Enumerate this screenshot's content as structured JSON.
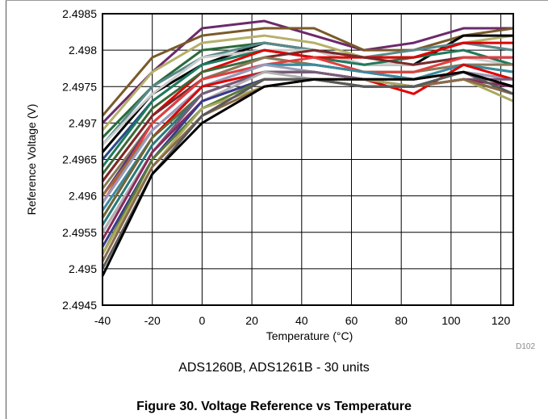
{
  "chart_data": {
    "type": "line",
    "xlabel": "Temperature (°C)",
    "ylabel": "Reference Voltage (V)",
    "x": [
      -40,
      -20,
      0,
      25,
      45,
      65,
      85,
      105,
      125
    ],
    "xlim": [
      -40,
      125
    ],
    "ylim": [
      2.4945,
      2.4985
    ],
    "xticks": [
      "-40",
      "-20",
      "0",
      "20",
      "40",
      "60",
      "80",
      "100",
      "120"
    ],
    "xtick_values": [
      -40,
      -20,
      0,
      20,
      40,
      60,
      80,
      100,
      120
    ],
    "yticks": [
      "2.4945",
      "2.495",
      "2.4955",
      "2.496",
      "2.4965",
      "2.497",
      "2.4975",
      "2.498",
      "2.4985"
    ],
    "ytick_values": [
      2.4945,
      2.495,
      2.4955,
      2.496,
      2.4965,
      2.497,
      2.4975,
      2.498,
      2.4985
    ],
    "grid": true,
    "figure_code": "D102",
    "series": [
      {
        "color": "#6b2a6b",
        "values": [
          2.497,
          2.4977,
          2.4983,
          2.4984,
          2.4982,
          2.498,
          2.4981,
          2.4983,
          2.4983
        ]
      },
      {
        "color": "#7a5a2a",
        "values": [
          2.4971,
          2.4979,
          2.4982,
          2.4983,
          2.4983,
          2.498,
          2.498,
          2.4982,
          2.4983
        ]
      },
      {
        "color": "#b5b06a",
        "values": [
          2.4969,
          2.4977,
          2.4981,
          2.4982,
          2.4981,
          2.4979,
          2.4979,
          2.4981,
          2.4982
        ]
      },
      {
        "color": "#2a6b3a",
        "values": [
          2.4968,
          2.4975,
          2.498,
          2.4981,
          2.498,
          2.4979,
          2.4979,
          2.4981,
          2.498
        ]
      },
      {
        "color": "#000000",
        "values": [
          2.4966,
          2.4974,
          2.4978,
          2.4981,
          2.498,
          2.4978,
          2.4978,
          2.4982,
          2.4982
        ]
      },
      {
        "color": "#5a8a8a",
        "values": [
          2.4967,
          2.4975,
          2.4979,
          2.4981,
          2.498,
          2.4979,
          2.498,
          2.4981,
          2.498
        ]
      },
      {
        "color": "#2a4a8a",
        "values": [
          2.4965,
          2.4973,
          2.4978,
          2.498,
          2.4979,
          2.4978,
          2.4978,
          2.4979,
          2.4979
        ]
      },
      {
        "color": "#cccccc",
        "values": [
          2.4967,
          2.4974,
          2.4979,
          2.498,
          2.498,
          2.4978,
          2.4978,
          2.4979,
          2.4978
        ]
      },
      {
        "color": "#1f7a5a",
        "values": [
          2.4964,
          2.4973,
          2.4978,
          2.498,
          2.4979,
          2.4978,
          2.4979,
          2.498,
          2.4978
        ]
      },
      {
        "color": "#e00000",
        "values": [
          2.4962,
          2.4971,
          2.4977,
          2.498,
          2.4979,
          2.4979,
          2.4979,
          2.4981,
          2.4981
        ]
      },
      {
        "color": "#7a2a2a",
        "values": [
          2.4962,
          2.4971,
          2.4976,
          2.4979,
          2.498,
          2.4979,
          2.4978,
          2.4979,
          2.4979
        ]
      },
      {
        "color": "#3a6a3a",
        "values": [
          2.4963,
          2.4972,
          2.4977,
          2.4979,
          2.4978,
          2.4977,
          2.4977,
          2.4978,
          2.4977
        ]
      },
      {
        "color": "#8a7a5a",
        "values": [
          2.4961,
          2.497,
          2.4976,
          2.4979,
          2.4978,
          2.4977,
          2.4977,
          2.4978,
          2.4978
        ]
      },
      {
        "color": "#5a3a7a",
        "values": [
          2.496,
          2.497,
          2.4976,
          2.4978,
          2.4978,
          2.4977,
          2.4976,
          2.4977,
          2.4976
        ]
      },
      {
        "color": "#e04040",
        "values": [
          2.4959,
          2.497,
          2.4976,
          2.4978,
          2.4979,
          2.4977,
          2.4977,
          2.4979,
          2.4979
        ]
      },
      {
        "color": "#a06a3a",
        "values": [
          2.496,
          2.4969,
          2.4975,
          2.4978,
          2.4978,
          2.4977,
          2.4976,
          2.4977,
          2.4976
        ]
      },
      {
        "color": "#3a8aa0",
        "values": [
          2.4958,
          2.4968,
          2.4975,
          2.4978,
          2.4978,
          2.4977,
          2.4976,
          2.4978,
          2.4977
        ]
      },
      {
        "color": "#9a9aba",
        "values": [
          2.4959,
          2.4969,
          2.4975,
          2.4978,
          2.4977,
          2.4976,
          2.4976,
          2.4977,
          2.4976
        ]
      },
      {
        "color": "#e00000",
        "values": [
          2.4957,
          2.4968,
          2.4975,
          2.4977,
          2.4977,
          2.4976,
          2.4974,
          2.4978,
          2.4976
        ]
      },
      {
        "color": "#6a6a3a",
        "values": [
          2.4957,
          2.4968,
          2.4974,
          2.4977,
          2.4977,
          2.4976,
          2.4976,
          2.4977,
          2.4975
        ]
      },
      {
        "color": "#2a7a7a",
        "values": [
          2.4956,
          2.4967,
          2.4974,
          2.4977,
          2.4977,
          2.4976,
          2.4975,
          2.4976,
          2.4974
        ]
      },
      {
        "color": "#7a5a7a",
        "values": [
          2.4955,
          2.4966,
          2.4974,
          2.4977,
          2.4977,
          2.4976,
          2.4975,
          2.4976,
          2.4976
        ]
      },
      {
        "color": "#b0b0b0",
        "values": [
          2.4955,
          2.4966,
          2.4973,
          2.4977,
          2.4976,
          2.4975,
          2.4975,
          2.4976,
          2.4975
        ]
      },
      {
        "color": "#8a2a5a",
        "values": [
          2.4954,
          2.4966,
          2.4973,
          2.4976,
          2.4976,
          2.4976,
          2.4975,
          2.4976,
          2.4975
        ]
      },
      {
        "color": "#3a3a8a",
        "values": [
          2.4953,
          2.4965,
          2.4973,
          2.4976,
          2.4976,
          2.4975,
          2.4975,
          2.4976,
          2.4974
        ]
      },
      {
        "color": "#5a7a3a",
        "values": [
          2.4952,
          2.4965,
          2.4972,
          2.4976,
          2.4976,
          2.4975,
          2.4975,
          2.4976,
          2.4974
        ]
      },
      {
        "color": "#aaa860",
        "values": [
          2.4952,
          2.4964,
          2.4972,
          2.4975,
          2.4976,
          2.4976,
          2.4975,
          2.4976,
          2.4973
        ]
      },
      {
        "color": "#8a6a4a",
        "values": [
          2.4951,
          2.4964,
          2.4971,
          2.4975,
          2.4976,
          2.4975,
          2.4975,
          2.4976,
          2.4974
        ]
      },
      {
        "color": "#5a5a5a",
        "values": [
          2.495,
          2.4963,
          2.4971,
          2.4976,
          2.4976,
          2.4975,
          2.4975,
          2.4977,
          2.4974
        ]
      },
      {
        "color": "#000000",
        "values": [
          2.4949,
          2.4963,
          2.497,
          2.4975,
          2.4976,
          2.4976,
          2.4976,
          2.4977,
          2.4975
        ]
      }
    ]
  },
  "caption": {
    "subtitle": "ADS1260B, ADS1261B - 30 units",
    "figure_title": "Figure 30. Voltage Reference vs Temperature"
  }
}
